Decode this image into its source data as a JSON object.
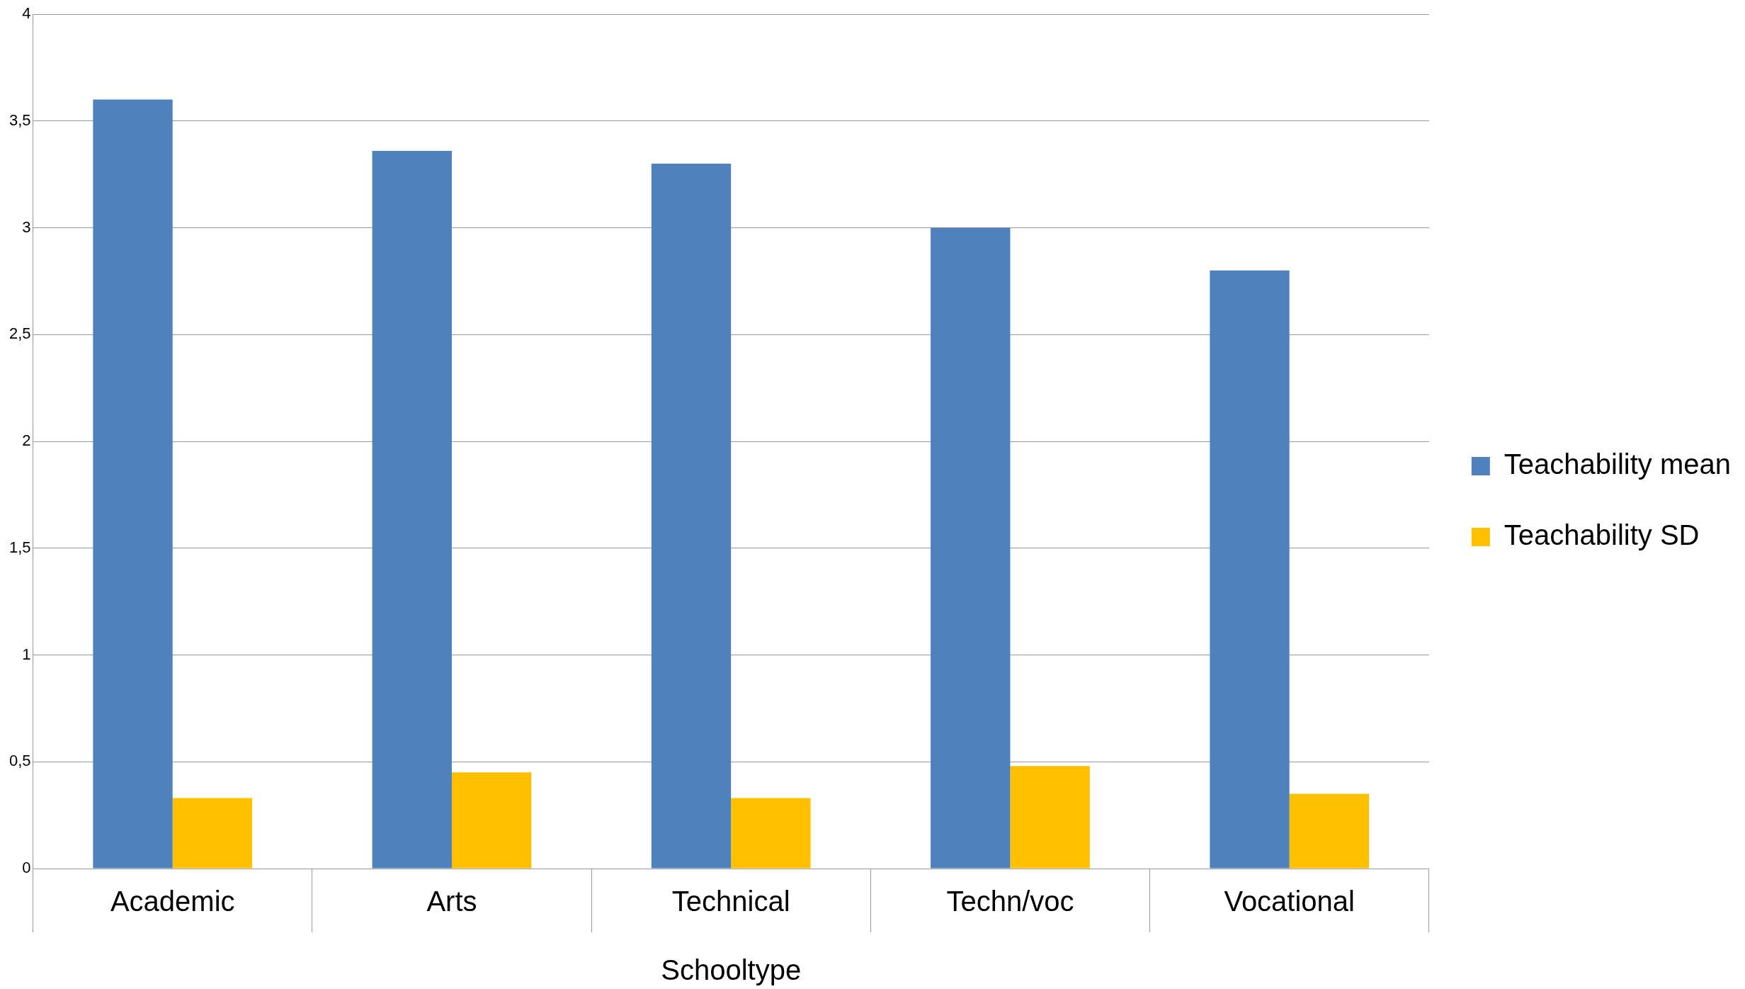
{
  "chart_data": {
    "type": "bar",
    "xlabel": "Schooltype",
    "categories": [
      "Academic",
      "Arts",
      "Technical",
      "Techn/voc",
      "Vocational"
    ],
    "series": [
      {
        "name": "Teachability mean",
        "color": "#4f81bd",
        "values": [
          3.6,
          3.36,
          3.3,
          3.0,
          2.8
        ]
      },
      {
        "name": "Teachability SD",
        "color": "#ffc000",
        "values": [
          0.33,
          0.45,
          0.33,
          0.48,
          0.35
        ]
      }
    ],
    "ylim": [
      0,
      4
    ],
    "yticks": [
      0,
      {
        "value": 0.5,
        "label": "0,5"
      },
      1,
      {
        "value": 1.5,
        "label": "1,5"
      },
      2,
      {
        "value": 2.5,
        "label": "2,5"
      },
      3,
      {
        "value": 3.5,
        "label": "3,5"
      },
      4
    ],
    "grid": "y",
    "legend": "right"
  }
}
